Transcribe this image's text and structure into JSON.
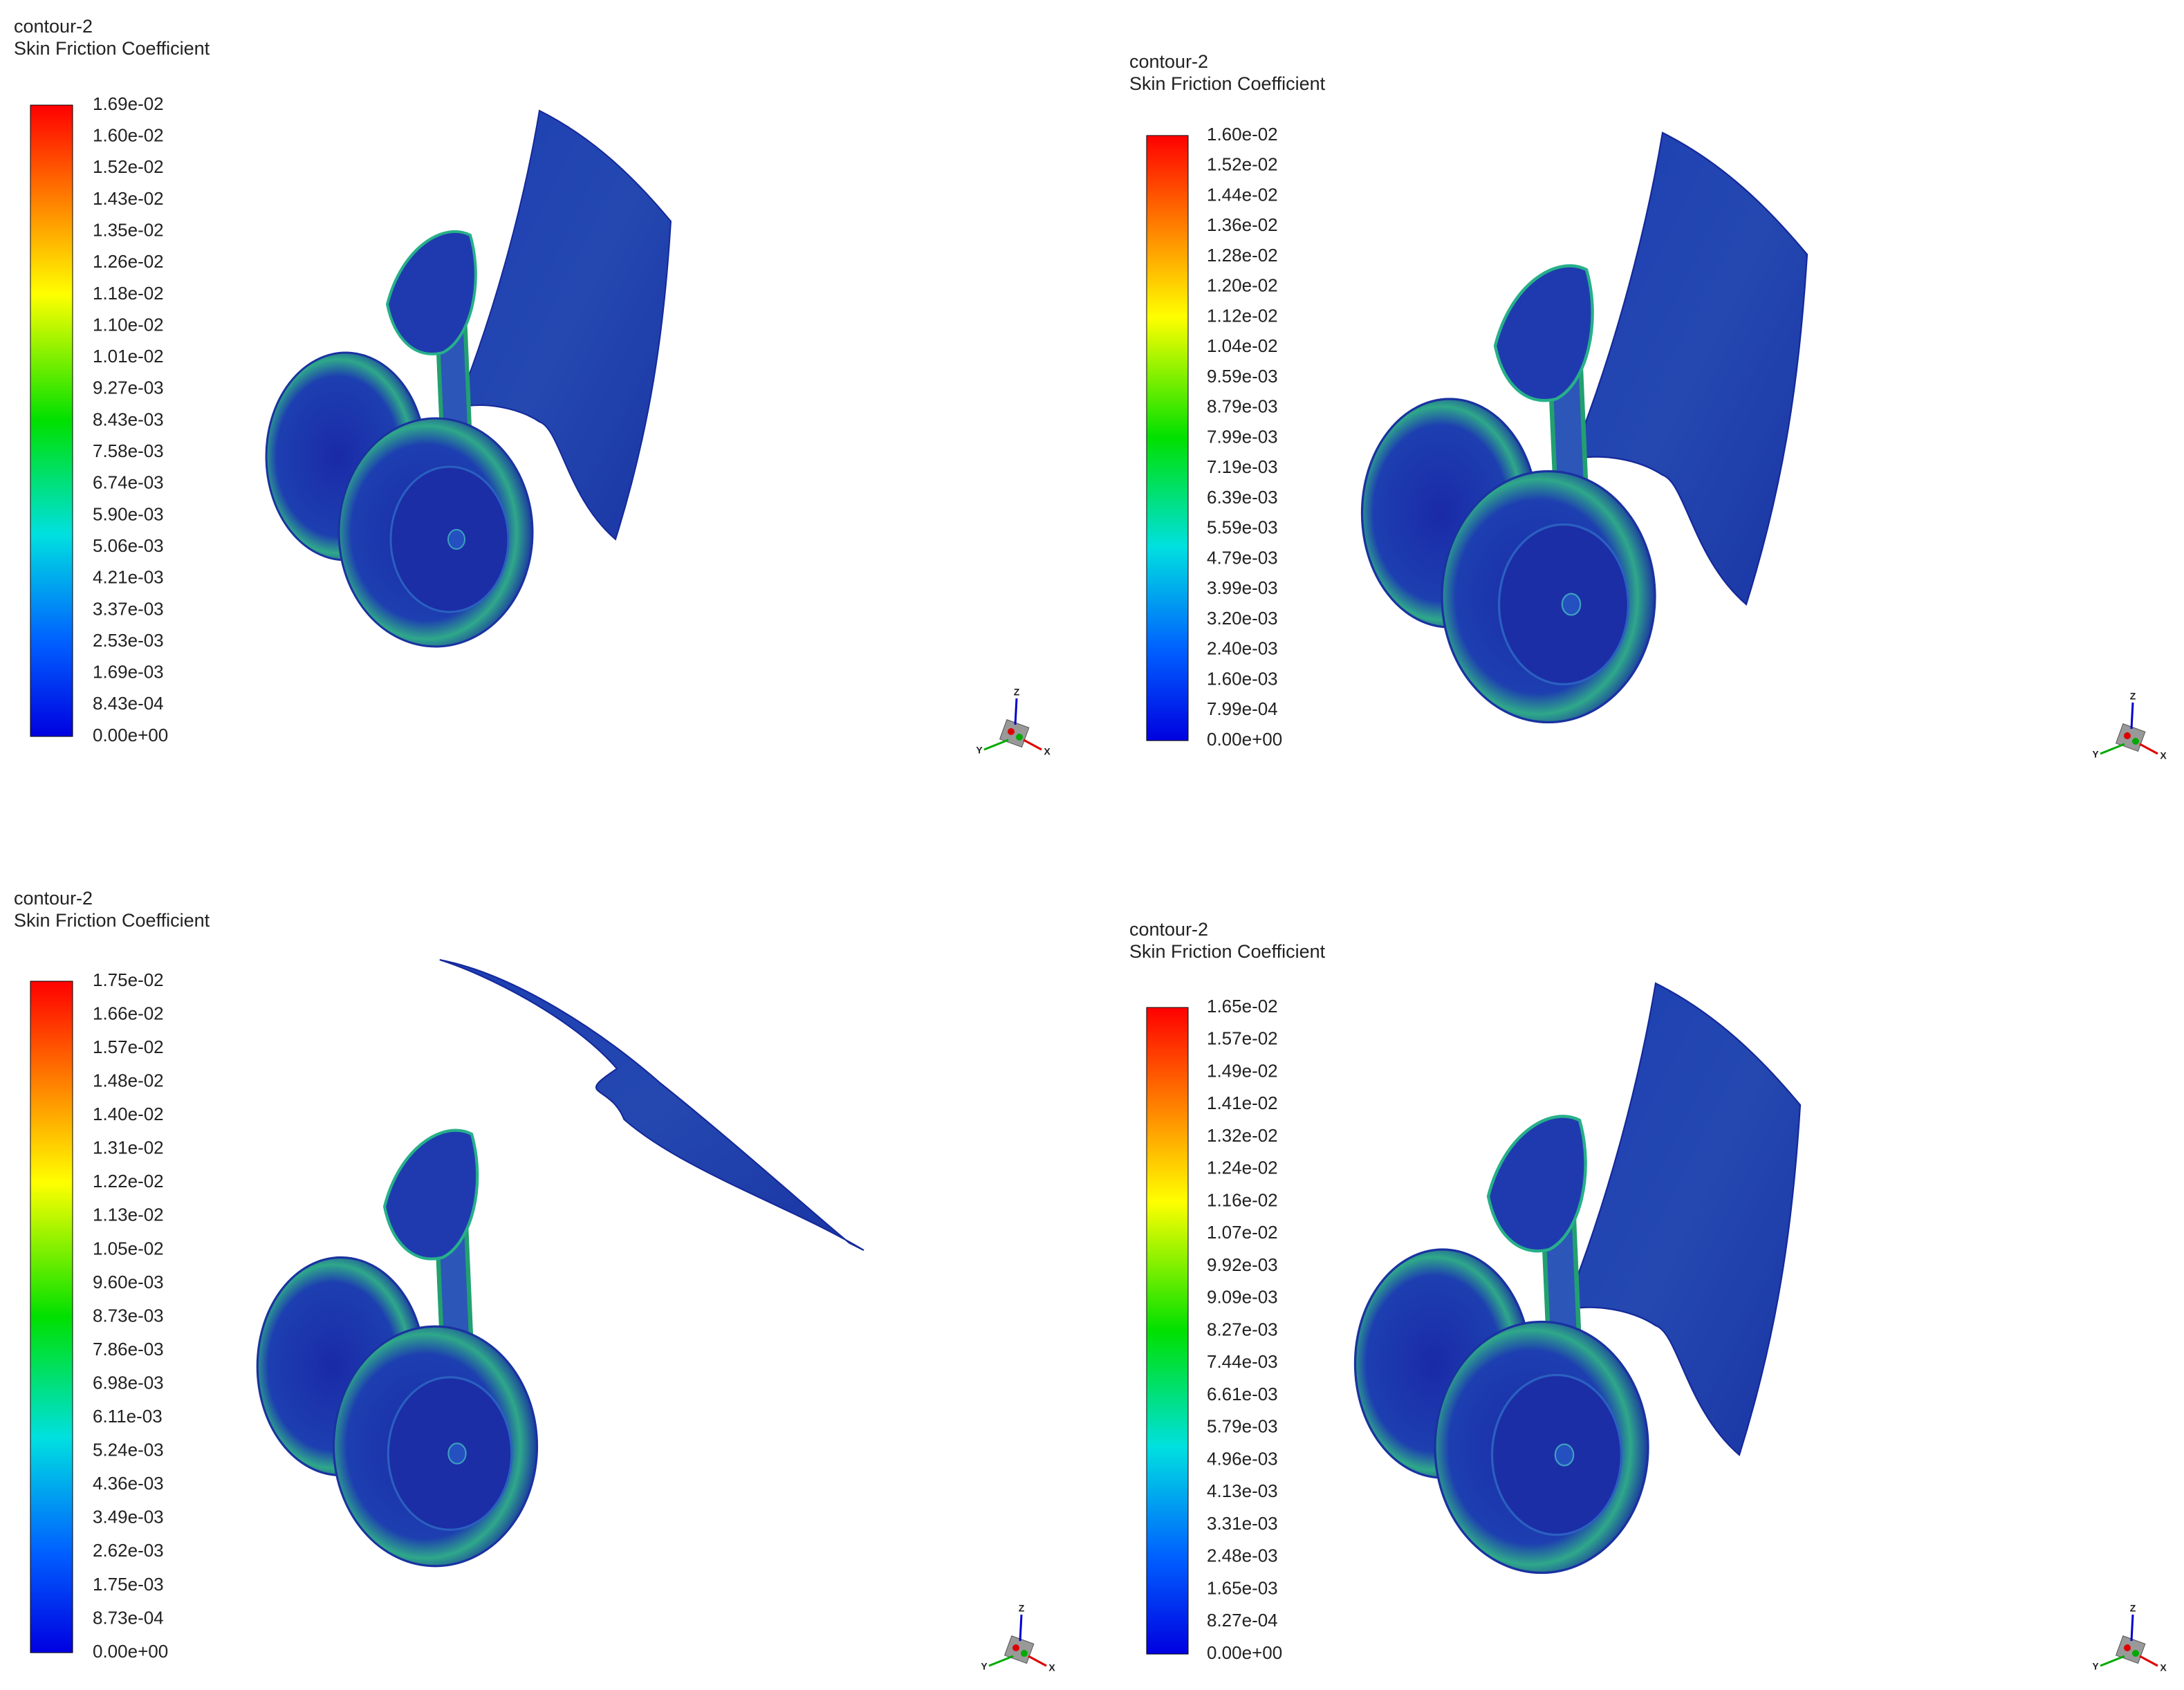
{
  "panels": [
    {
      "title": "contour-2",
      "subtitle": "Skin Friction Coefficient",
      "colorbar_labels": [
        "1.69e-02",
        "1.60e-02",
        "1.52e-02",
        "1.43e-02",
        "1.35e-02",
        "1.26e-02",
        "1.18e-02",
        "1.10e-02",
        "1.01e-02",
        "9.27e-03",
        "8.43e-03",
        "7.58e-03",
        "6.74e-03",
        "5.90e-03",
        "5.06e-03",
        "4.21e-03",
        "3.37e-03",
        "2.53e-03",
        "1.69e-03",
        "8.43e-04",
        "0.00e+00"
      ],
      "axis_labels": [
        "Z",
        "Y",
        "X"
      ]
    },
    {
      "title": "contour-2",
      "subtitle": "Skin Friction Coefficient",
      "colorbar_labels": [
        "1.60e-02",
        "1.52e-02",
        "1.44e-02",
        "1.36e-02",
        "1.28e-02",
        "1.20e-02",
        "1.12e-02",
        "1.04e-02",
        "9.59e-03",
        "8.79e-03",
        "7.99e-03",
        "7.19e-03",
        "6.39e-03",
        "5.59e-03",
        "4.79e-03",
        "3.99e-03",
        "3.20e-03",
        "2.40e-03",
        "1.60e-03",
        "7.99e-04",
        "0.00e+00"
      ],
      "axis_labels": [
        "Z",
        "Y",
        "X"
      ]
    },
    {
      "title": "contour-2",
      "subtitle": "Skin Friction Coefficient",
      "colorbar_labels": [
        "1.75e-02",
        "1.66e-02",
        "1.57e-02",
        "1.48e-02",
        "1.40e-02",
        "1.31e-02",
        "1.22e-02",
        "1.13e-02",
        "1.05e-02",
        "9.60e-03",
        "8.73e-03",
        "7.86e-03",
        "6.98e-03",
        "6.11e-03",
        "5.24e-03",
        "4.36e-03",
        "3.49e-03",
        "2.62e-03",
        "1.75e-03",
        "8.73e-04",
        "0.00e+00"
      ],
      "axis_labels": [
        "Z",
        "Y",
        "X"
      ]
    },
    {
      "title": "contour-2",
      "subtitle": "Skin Friction Coefficient",
      "colorbar_labels": [
        "1.65e-02",
        "1.57e-02",
        "1.49e-02",
        "1.41e-02",
        "1.32e-02",
        "1.24e-02",
        "1.16e-02",
        "1.07e-02",
        "9.92e-03",
        "9.09e-03",
        "8.27e-03",
        "7.44e-03",
        "6.61e-03",
        "5.79e-03",
        "4.96e-03",
        "4.13e-03",
        "3.31e-03",
        "2.48e-03",
        "1.65e-03",
        "8.27e-04",
        "0.00e+00"
      ],
      "axis_labels": [
        "Z",
        "Y",
        "X"
      ]
    }
  ]
}
